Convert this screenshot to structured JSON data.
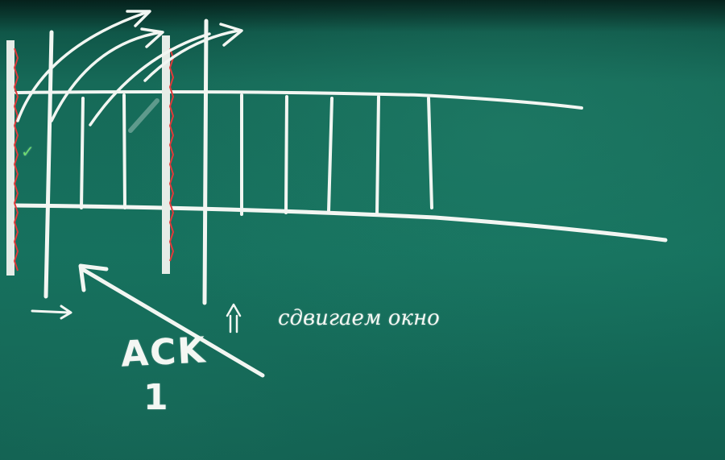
{
  "scene": {
    "board_color": "#15705d",
    "chalk_color": "#f2f6f2",
    "mark_color": "#e03a3a",
    "check_color": "#6ddb6f"
  },
  "labels": {
    "ack": "ACK",
    "ack_number": "1",
    "caption": "сдвигаем окно",
    "check": "✓"
  }
}
